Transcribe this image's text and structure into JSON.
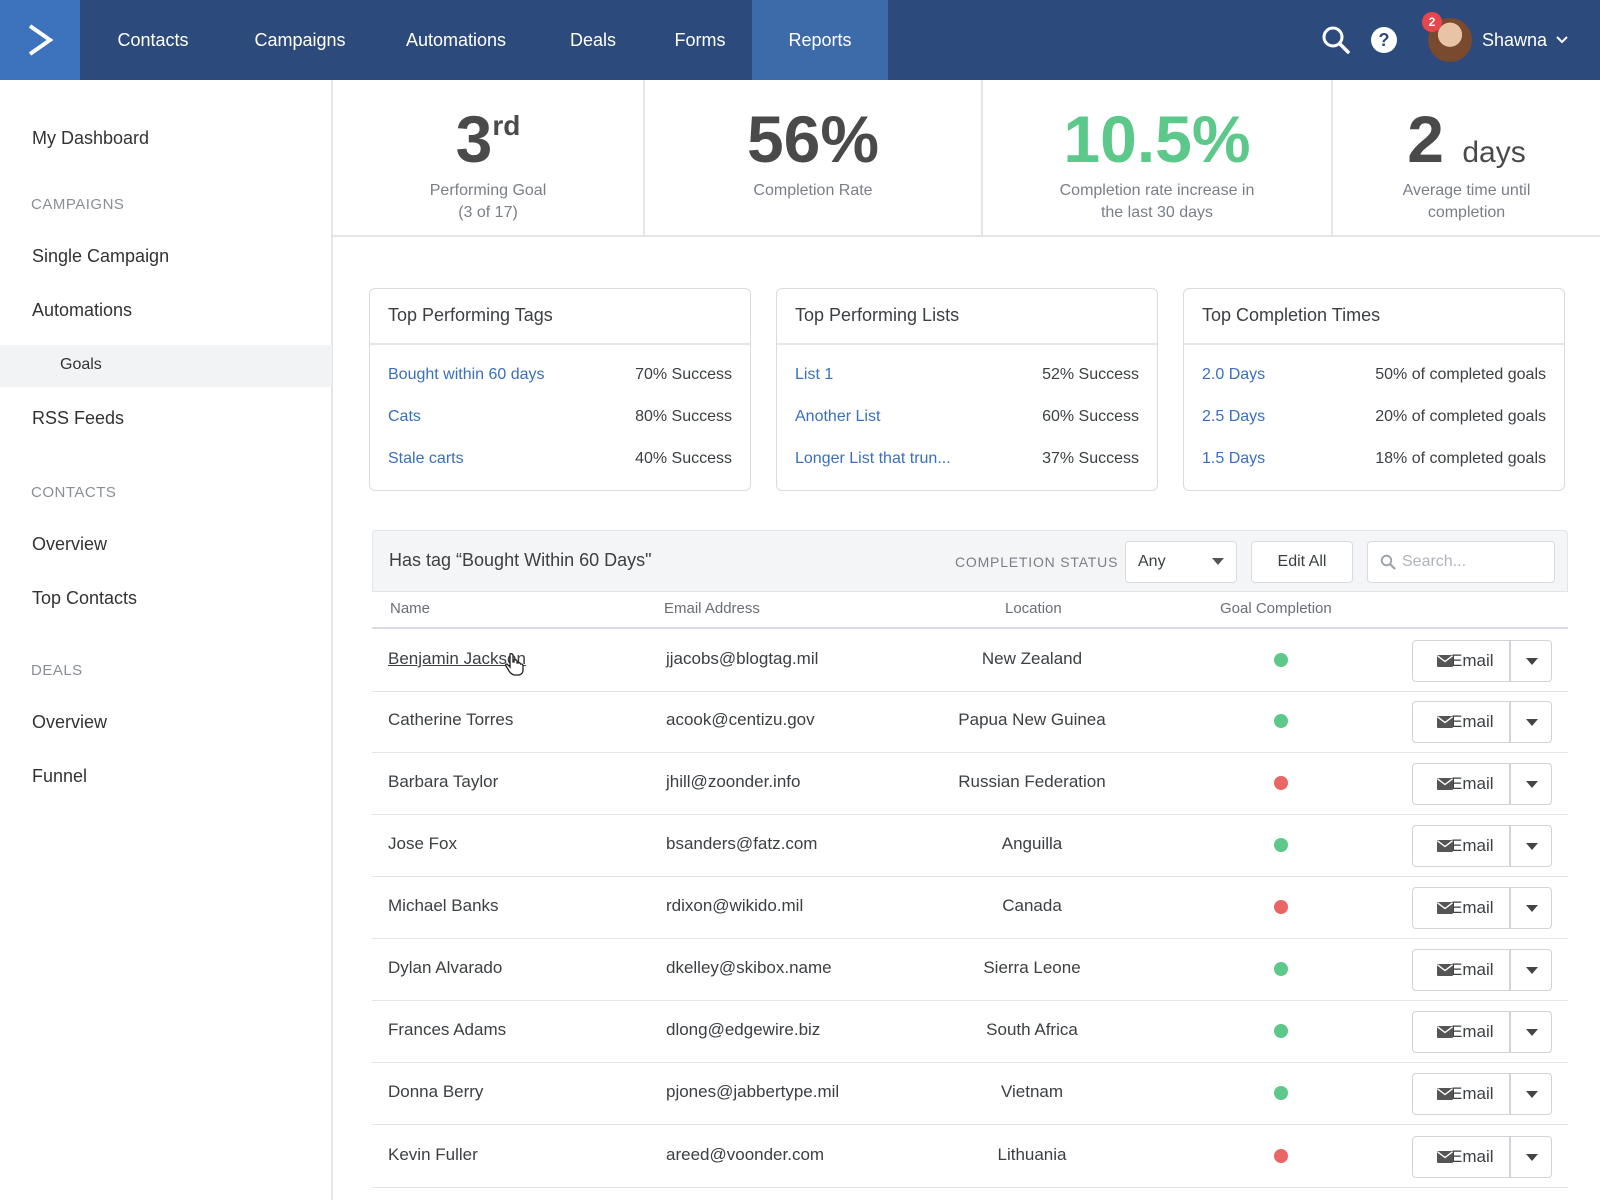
{
  "nav": {
    "items": [
      {
        "label": "Contacts"
      },
      {
        "label": "Campaigns"
      },
      {
        "label": "Automations"
      },
      {
        "label": "Deals"
      },
      {
        "label": "Forms"
      },
      {
        "label": "Reports"
      }
    ],
    "active": "Reports",
    "user": {
      "name": "Shawna",
      "notifications": "2"
    }
  },
  "sidebar": {
    "dashboard": "My Dashboard",
    "campaigns_header": "CAMPAIGNS",
    "single_campaign": "Single Campaign",
    "automations": "Automations",
    "goals": "Goals",
    "rss_feeds": "RSS Feeds",
    "contacts_header": "CONTACTS",
    "contacts_overview": "Overview",
    "top_contacts": "Top Contacts",
    "deals_header": "DEALS",
    "deals_overview": "Overview",
    "funnel": "Funnel"
  },
  "stats": [
    {
      "value": "3",
      "suffix": "rd",
      "label1": "Performing Goal",
      "label2": "(3 of 17)"
    },
    {
      "value": "56%",
      "label1": "Completion Rate",
      "label2": ""
    },
    {
      "value": "10.5%",
      "label1": "Completion rate increase in",
      "label2": "the last 30 days"
    },
    {
      "value": "2",
      "unit": "days",
      "label1": "Average time until",
      "label2": "completion"
    }
  ],
  "cards": [
    {
      "title": "Top Performing Tags",
      "rows": [
        {
          "name": "Bought within 60 days",
          "value": "70% Success"
        },
        {
          "name": "Cats",
          "value": "80% Success"
        },
        {
          "name": "Stale carts",
          "value": "40% Success"
        }
      ]
    },
    {
      "title": "Top Performing Lists",
      "rows": [
        {
          "name": "List 1",
          "value": "52% Success"
        },
        {
          "name": "Another List",
          "value": "60% Success"
        },
        {
          "name": "Longer List that trun...",
          "value": "37% Success"
        }
      ]
    },
    {
      "title": "Top Completion Times",
      "rows": [
        {
          "name": "2.0 Days",
          "value": "50% of completed goals"
        },
        {
          "name": "2.5 Days",
          "value": "20% of completed goals"
        },
        {
          "name": "1.5 Days",
          "value": "18% of completed goals"
        }
      ]
    }
  ],
  "table": {
    "title": "Has tag “Bought Within 60 Days\"",
    "status_label": "COMPLETION STATUS",
    "status_value": "Any",
    "edit_all": "Edit All",
    "search_placeholder": "Search...",
    "columns": [
      "Name",
      "Email Address",
      "Location",
      "Goal Completion"
    ],
    "email_label": "Email",
    "rows": [
      {
        "name": "Benjamin Jackson",
        "email": "jjacobs@blogtag.mil",
        "location": "New Zealand",
        "status": "green"
      },
      {
        "name": "Catherine Torres",
        "email": "acook@centizu.gov",
        "location": "Papua New Guinea",
        "status": "green"
      },
      {
        "name": "Barbara Taylor",
        "email": "jhill@zoonder.info",
        "location": "Russian Federation",
        "status": "red"
      },
      {
        "name": "Jose Fox",
        "email": "bsanders@fatz.com",
        "location": "Anguilla",
        "status": "green"
      },
      {
        "name": "Michael Banks",
        "email": "rdixon@wikido.mil",
        "location": "Canada",
        "status": "red"
      },
      {
        "name": "Dylan Alvarado",
        "email": "dkelley@skibox.name",
        "location": "Sierra Leone",
        "status": "green"
      },
      {
        "name": "Frances Adams",
        "email": "dlong@edgewire.biz",
        "location": "South Africa",
        "status": "green"
      },
      {
        "name": "Donna Berry",
        "email": "pjones@jabbertype.mil",
        "location": "Vietnam",
        "status": "green"
      },
      {
        "name": "Kevin Fuller",
        "email": "areed@voonder.com",
        "location": "Lithuania",
        "status": "red"
      }
    ]
  },
  "colors": {
    "nav_bg": "#2c4a7c",
    "nav_active": "#3d6aa8",
    "link": "#3a6fbd",
    "success_green": "#5cc88a",
    "fail_red": "#ea6565"
  }
}
